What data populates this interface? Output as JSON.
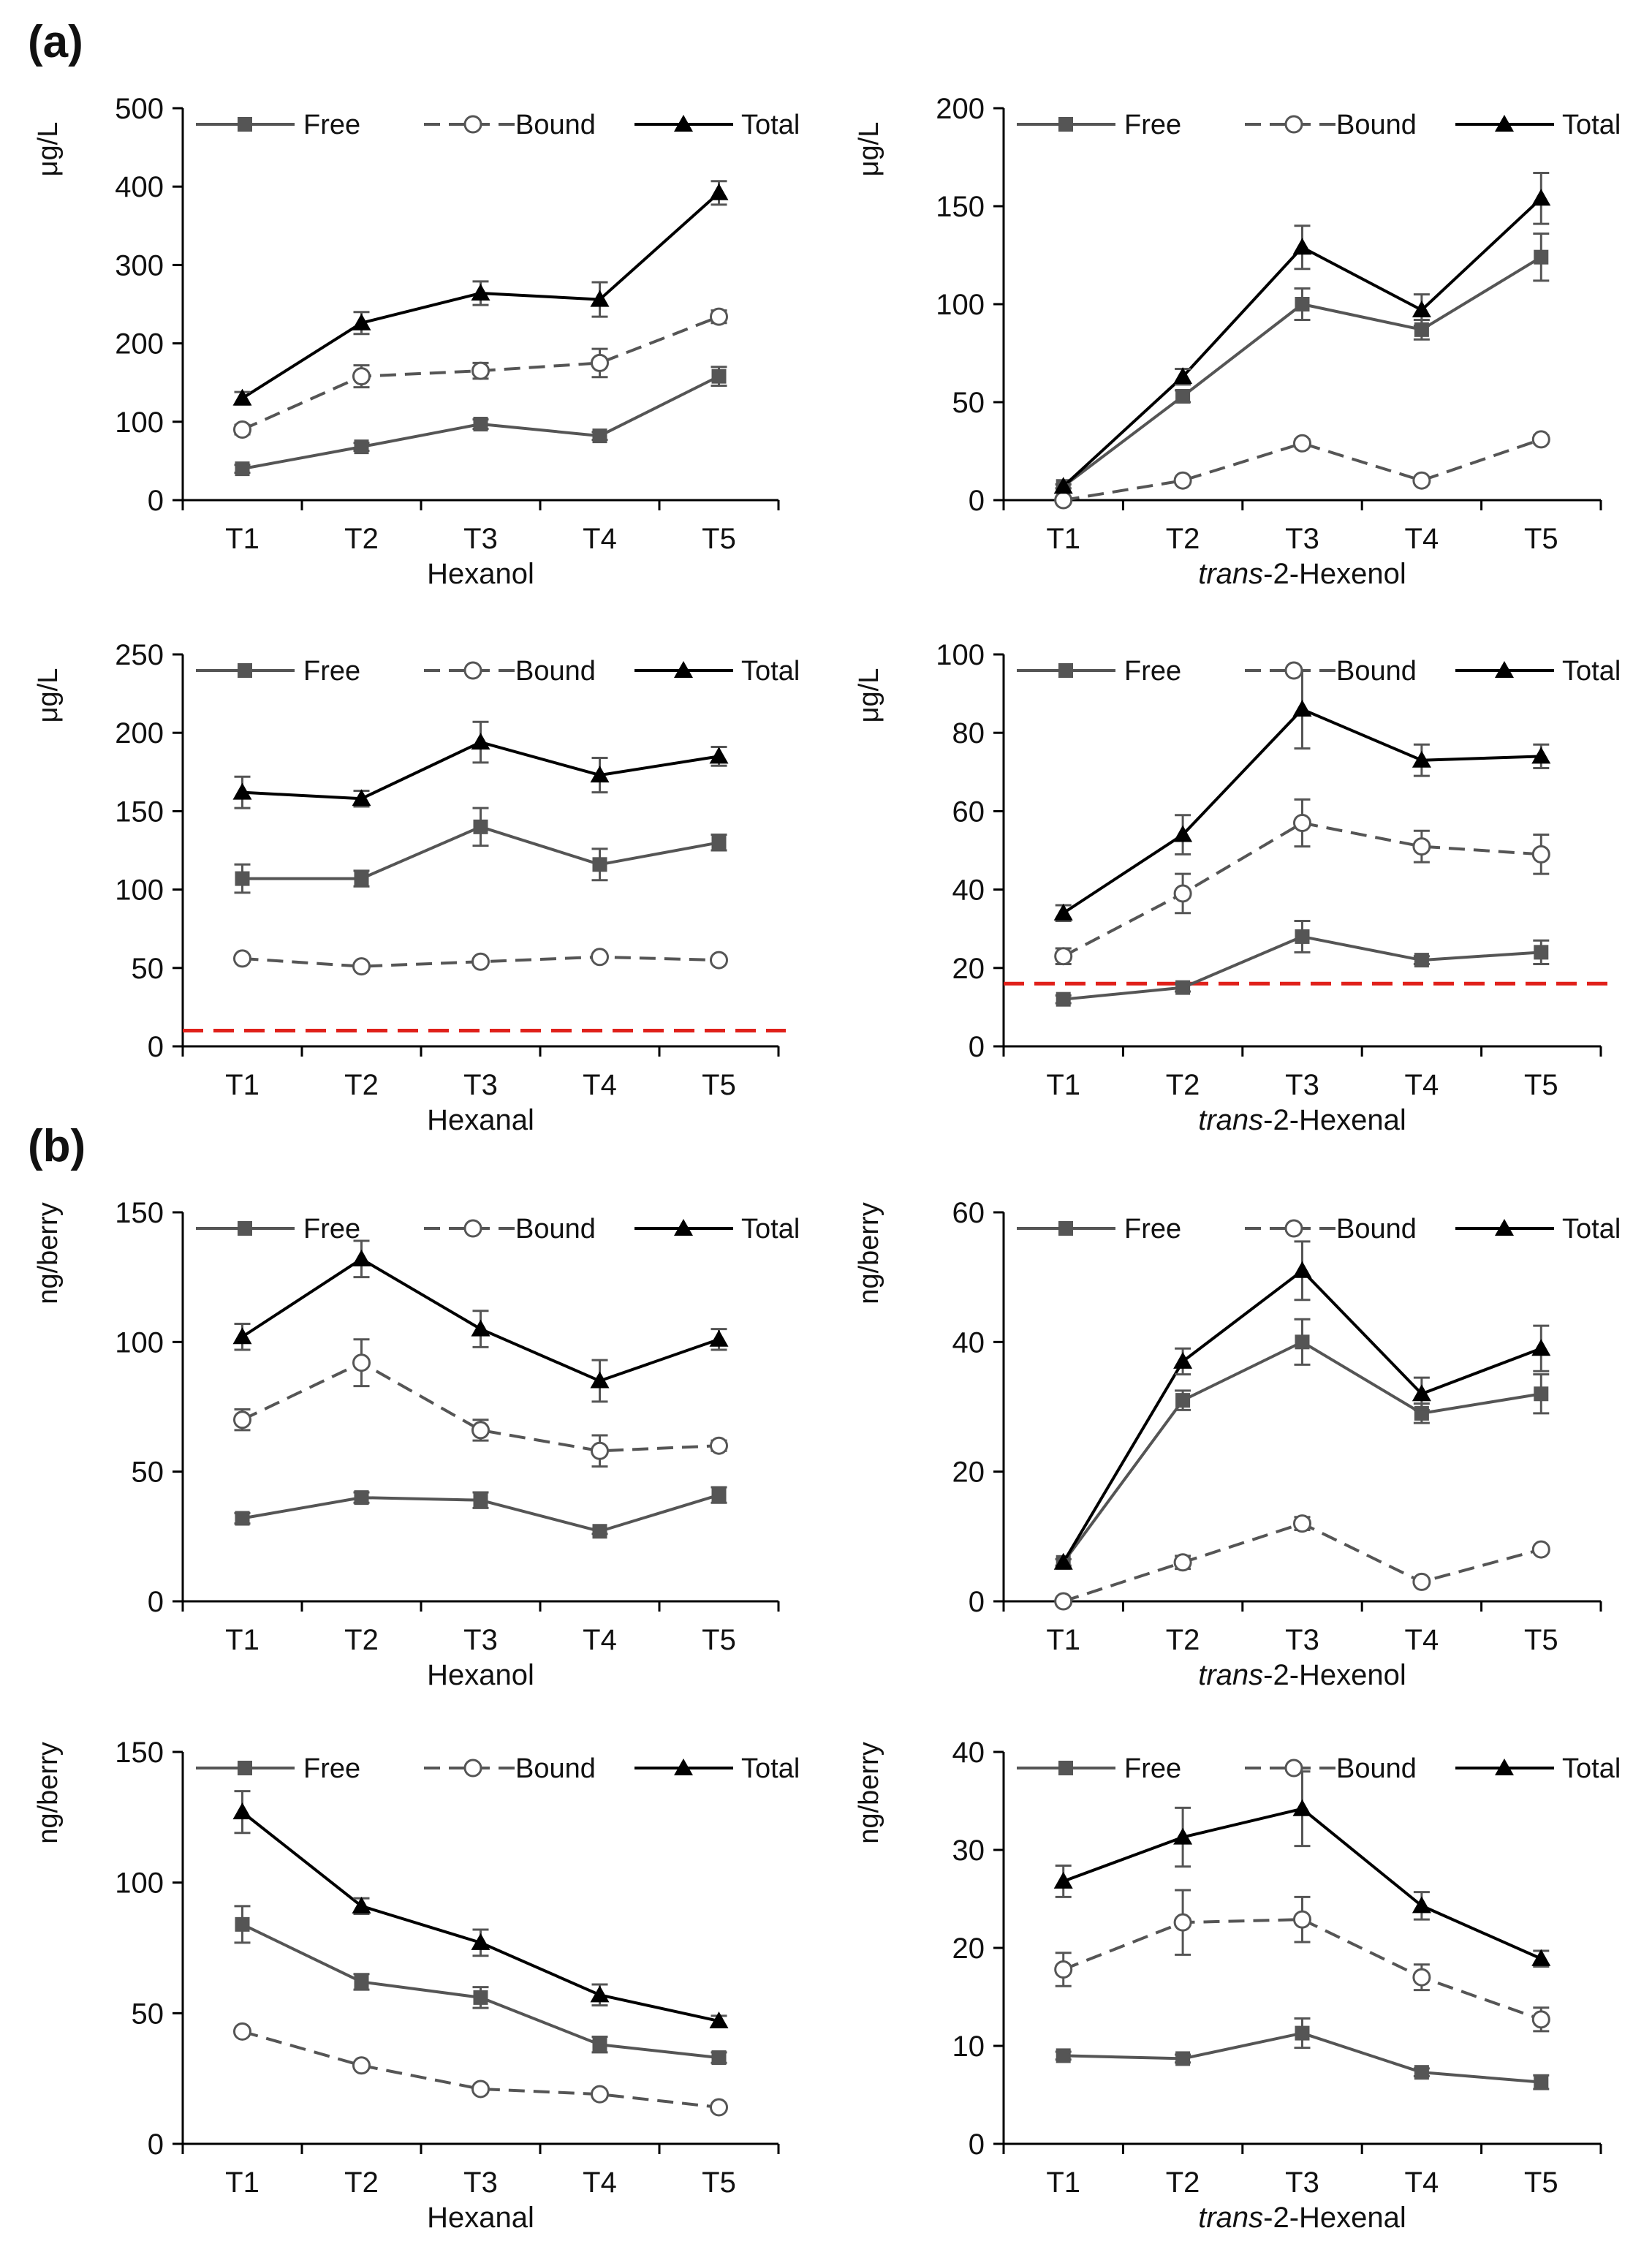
{
  "panels": {
    "a": "(a)",
    "b": "(b)"
  },
  "legend": {
    "free": "Free",
    "bound": "Bound",
    "total": "Total"
  },
  "colors": {
    "free": "#555555",
    "bound": "#555555",
    "total": "#000000",
    "threshold": "#e0201a",
    "axis": "#000000"
  },
  "chart_data": [
    {
      "id": "a1",
      "type": "line",
      "panel": "a",
      "categories": [
        "T1",
        "T2",
        "T3",
        "T4",
        "T5"
      ],
      "xlabel_parts": [
        {
          "text": "Hexanol",
          "italic": false
        }
      ],
      "ylabel": "μg/L",
      "ylim": [
        0,
        500
      ],
      "yticks": [
        0,
        100,
        200,
        300,
        400,
        500
      ],
      "series": [
        {
          "name": "Free",
          "values": [
            40,
            68,
            97,
            82,
            158
          ],
          "errors": [
            5,
            5,
            6,
            5,
            12
          ]
        },
        {
          "name": "Bound",
          "values": [
            90,
            158,
            165,
            175,
            234
          ],
          "errors": [
            6,
            14,
            10,
            18,
            8
          ]
        },
        {
          "name": "Total",
          "values": [
            130,
            226,
            264,
            256,
            392
          ],
          "errors": [
            8,
            14,
            15,
            22,
            15
          ]
        }
      ]
    },
    {
      "id": "a2",
      "type": "line",
      "panel": "a",
      "categories": [
        "T1",
        "T2",
        "T3",
        "T4",
        "T5"
      ],
      "xlabel_parts": [
        {
          "text": "trans",
          "italic": true
        },
        {
          "text": "-2-Hexenol",
          "italic": false
        }
      ],
      "ylabel": "μg/L",
      "ylim": [
        0,
        200
      ],
      "yticks": [
        0,
        50,
        100,
        150,
        200
      ],
      "series": [
        {
          "name": "Free",
          "values": [
            7,
            53,
            100,
            87,
            124
          ],
          "errors": [
            1,
            3,
            8,
            5,
            12
          ]
        },
        {
          "name": "Bound",
          "values": [
            0,
            10,
            29,
            10,
            31
          ],
          "errors": [
            0,
            1,
            2,
            1,
            2
          ]
        },
        {
          "name": "Total",
          "values": [
            7,
            63,
            129,
            97,
            154
          ],
          "errors": [
            1,
            4,
            11,
            8,
            13
          ]
        }
      ]
    },
    {
      "id": "a3",
      "type": "line",
      "panel": "a",
      "categories": [
        "T1",
        "T2",
        "T3",
        "T4",
        "T5"
      ],
      "xlabel_parts": [
        {
          "text": "Hexanal",
          "italic": false
        }
      ],
      "ylabel": "μg/L",
      "ylim": [
        0,
        250
      ],
      "yticks": [
        0,
        50,
        100,
        150,
        200,
        250
      ],
      "threshold": 10,
      "series": [
        {
          "name": "Free",
          "values": [
            107,
            107,
            140,
            116,
            130
          ],
          "errors": [
            9,
            5,
            12,
            10,
            5
          ]
        },
        {
          "name": "Bound",
          "values": [
            56,
            51,
            54,
            57,
            55
          ],
          "errors": [
            2,
            1,
            2,
            2,
            2
          ]
        },
        {
          "name": "Total",
          "values": [
            162,
            158,
            194,
            173,
            185
          ],
          "errors": [
            10,
            5,
            13,
            11,
            6
          ]
        }
      ]
    },
    {
      "id": "a4",
      "type": "line",
      "panel": "a",
      "categories": [
        "T1",
        "T2",
        "T3",
        "T4",
        "T5"
      ],
      "xlabel_parts": [
        {
          "text": "trans",
          "italic": true
        },
        {
          "text": "-2-Hexenal",
          "italic": false
        }
      ],
      "ylabel": "μg/L",
      "ylim": [
        0,
        100
      ],
      "yticks": [
        0,
        20,
        40,
        60,
        80,
        100
      ],
      "threshold": 16,
      "series": [
        {
          "name": "Free",
          "values": [
            12,
            15,
            28,
            22,
            24
          ],
          "errors": [
            1,
            1,
            4,
            1,
            3
          ]
        },
        {
          "name": "Bound",
          "values": [
            23,
            39,
            57,
            51,
            49
          ],
          "errors": [
            2,
            5,
            6,
            4,
            5
          ]
        },
        {
          "name": "Total",
          "values": [
            34,
            54,
            86,
            73,
            74
          ],
          "errors": [
            2,
            5,
            10,
            4,
            3
          ]
        }
      ]
    },
    {
      "id": "b1",
      "type": "line",
      "panel": "b",
      "categories": [
        "T1",
        "T2",
        "T3",
        "T4",
        "T5"
      ],
      "xlabel_parts": [
        {
          "text": "Hexanol",
          "italic": false
        }
      ],
      "ylabel": "ng/berry",
      "ylim": [
        0,
        150
      ],
      "yticks": [
        0,
        50,
        100,
        150
      ],
      "series": [
        {
          "name": "Free",
          "values": [
            32,
            40,
            39,
            27,
            41
          ],
          "errors": [
            2,
            2,
            3,
            1,
            3
          ]
        },
        {
          "name": "Bound",
          "values": [
            70,
            92,
            66,
            58,
            60
          ],
          "errors": [
            4,
            9,
            4,
            6,
            2
          ]
        },
        {
          "name": "Total",
          "values": [
            102,
            132,
            105,
            85,
            101
          ],
          "errors": [
            5,
            7,
            7,
            8,
            4
          ]
        }
      ]
    },
    {
      "id": "b2",
      "type": "line",
      "panel": "b",
      "categories": [
        "T1",
        "T2",
        "T3",
        "T4",
        "T5"
      ],
      "xlabel_parts": [
        {
          "text": "trans",
          "italic": true
        },
        {
          "text": "-2-Hexenol",
          "italic": false
        }
      ],
      "ylabel": "ng/berry",
      "ylim": [
        0,
        60
      ],
      "yticks": [
        0,
        20,
        40,
        60
      ],
      "series": [
        {
          "name": "Free",
          "values": [
            6,
            31,
            40,
            29,
            32
          ],
          "errors": [
            0.5,
            1.5,
            3.5,
            1.5,
            3
          ]
        },
        {
          "name": "Bound",
          "values": [
            0,
            6,
            12,
            3,
            8
          ],
          "errors": [
            0,
            1,
            1,
            0.5,
            0.5
          ]
        },
        {
          "name": "Total",
          "values": [
            6,
            37,
            51,
            32,
            39
          ],
          "errors": [
            0.5,
            2,
            4.5,
            2.5,
            3.5
          ]
        }
      ]
    },
    {
      "id": "b3",
      "type": "line",
      "panel": "b",
      "categories": [
        "T1",
        "T2",
        "T3",
        "T4",
        "T5"
      ],
      "xlabel_parts": [
        {
          "text": "Hexanal",
          "italic": false
        }
      ],
      "ylabel": "ng/berry",
      "ylim": [
        0,
        150
      ],
      "yticks": [
        0,
        50,
        100,
        150
      ],
      "series": [
        {
          "name": "Free",
          "values": [
            84,
            62,
            56,
            38,
            33
          ],
          "errors": [
            7,
            3,
            4,
            3,
            2
          ]
        },
        {
          "name": "Bound",
          "values": [
            43,
            30,
            21,
            19,
            14
          ],
          "errors": [
            1,
            1,
            1,
            1,
            1
          ]
        },
        {
          "name": "Total",
          "values": [
            127,
            91,
            77,
            57,
            47
          ],
          "errors": [
            8,
            3,
            5,
            4,
            2
          ]
        }
      ]
    },
    {
      "id": "b4",
      "type": "line",
      "panel": "b",
      "categories": [
        "T1",
        "T2",
        "T3",
        "T4",
        "T5"
      ],
      "xlabel_parts": [
        {
          "text": "trans",
          "italic": true
        },
        {
          "text": "-2-Hexenal",
          "italic": false
        }
      ],
      "ylabel": "ng/berry",
      "ylim": [
        0,
        40
      ],
      "yticks": [
        0,
        10,
        20,
        30,
        40
      ],
      "series": [
        {
          "name": "Free",
          "values": [
            9,
            8.7,
            11.3,
            7.3,
            6.3
          ],
          "errors": [
            0.4,
            0.4,
            1.5,
            0.4,
            0.7
          ]
        },
        {
          "name": "Bound",
          "values": [
            17.8,
            22.6,
            22.9,
            17,
            12.7
          ],
          "errors": [
            1.7,
            3.3,
            2.3,
            1.3,
            1.2
          ]
        },
        {
          "name": "Total",
          "values": [
            26.8,
            31.3,
            34.2,
            24.3,
            18.9
          ],
          "errors": [
            1.6,
            3,
            3.8,
            1.4,
            0.8
          ]
        }
      ]
    }
  ]
}
